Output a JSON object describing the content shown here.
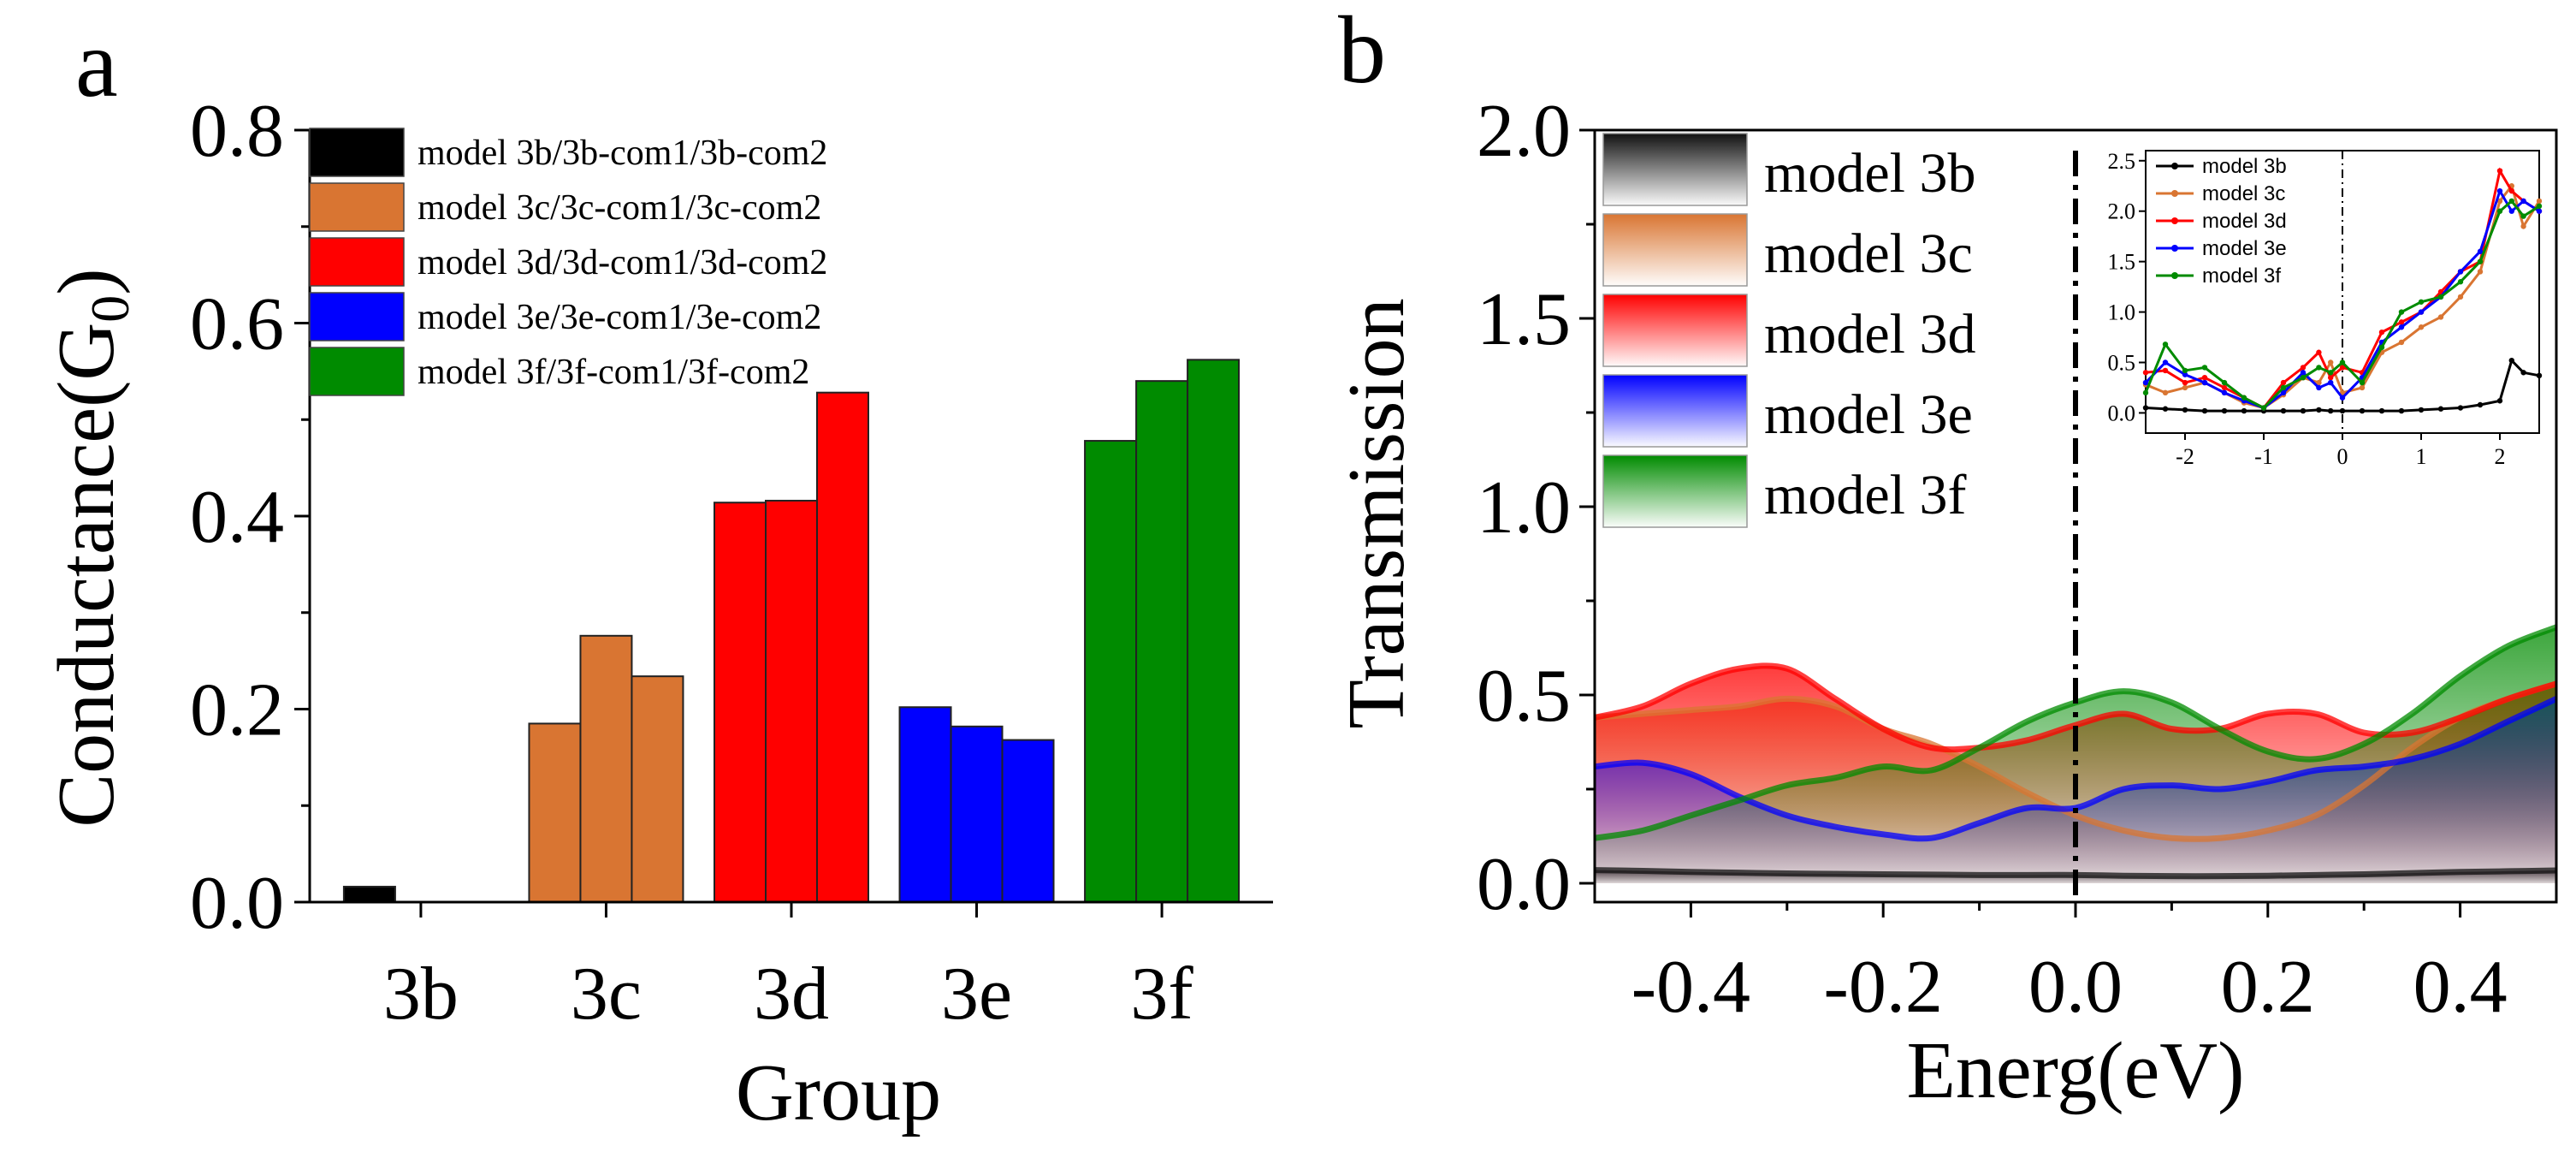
{
  "panel_a": {
    "label": "a",
    "chart_data": {
      "type": "bar",
      "title": "",
      "xlabel": "Group",
      "ylabel": "Conductance(G",
      "ylabel_sub": "0",
      "ylabel_close": ")",
      "ylim": [
        0,
        0.8
      ],
      "yticks": [
        "0.0",
        "0.2",
        "0.4",
        "0.6",
        "0.8"
      ],
      "yticks_values": [
        0,
        0.2,
        0.4,
        0.6,
        0.8
      ],
      "categories": [
        "3b",
        "3c",
        "3d",
        "3e",
        "3f"
      ],
      "series_per_group": [
        "model",
        "com1",
        "com2"
      ],
      "groups": [
        {
          "category": "3b",
          "color": "#000000",
          "legend": "model 3b/3b-com1/3b-com2",
          "values": [
            0.016,
            0.0,
            0.0
          ]
        },
        {
          "category": "3c",
          "color": "#D97532",
          "legend": "model 3c/3c-com1/3c-com2",
          "values": [
            0.185,
            0.276,
            0.234
          ]
        },
        {
          "category": "3d",
          "color": "#FF0000",
          "legend": "model 3d/3d-com1/3d-com2",
          "values": [
            0.414,
            0.416,
            0.528
          ]
        },
        {
          "category": "3e",
          "color": "#0000FF",
          "legend": "model 3e/3e-com1/3e-com2",
          "values": [
            0.202,
            0.182,
            0.168
          ]
        },
        {
          "category": "3f",
          "color": "#008B00",
          "legend": "model 3f/3f-com1/3f-com2",
          "values": [
            0.478,
            0.54,
            0.562
          ]
        }
      ]
    }
  },
  "panel_b": {
    "label": "b",
    "chart_data": {
      "type": "area",
      "title": "",
      "xlabel": "Energ(eV)",
      "ylabel": "Transmission",
      "xlim": [
        -0.5,
        0.5
      ],
      "ylim": [
        -0.05,
        2.0
      ],
      "xticks": [
        "-0.4",
        "-0.2",
        "0.0",
        "0.2",
        "0.4"
      ],
      "xticks_values": [
        -0.4,
        -0.2,
        0.0,
        0.2,
        0.4
      ],
      "yticks": [
        "0.0",
        "0.5",
        "1.0",
        "1.5",
        "2.0"
      ],
      "yticks_values": [
        0,
        0.5,
        1.0,
        1.5,
        2.0
      ],
      "vline_x": 0.0,
      "x": [
        -0.5,
        -0.45,
        -0.4,
        -0.35,
        -0.3,
        -0.25,
        -0.2,
        -0.15,
        -0.1,
        -0.05,
        0.0,
        0.05,
        0.1,
        0.15,
        0.2,
        0.25,
        0.3,
        0.35,
        0.4,
        0.45,
        0.5
      ],
      "series": [
        {
          "name": "model 3b",
          "color": "#111111",
          "values": [
            0.035,
            0.033,
            0.03,
            0.028,
            0.026,
            0.025,
            0.024,
            0.023,
            0.022,
            0.022,
            0.022,
            0.02,
            0.019,
            0.019,
            0.02,
            0.022,
            0.024,
            0.027,
            0.03,
            0.032,
            0.034
          ]
        },
        {
          "name": "model 3c",
          "color": "#D97532",
          "values": [
            0.44,
            0.45,
            0.46,
            0.47,
            0.49,
            0.47,
            0.41,
            0.37,
            0.31,
            0.24,
            0.18,
            0.14,
            0.12,
            0.12,
            0.14,
            0.18,
            0.26,
            0.36,
            0.44,
            0.49,
            0.53
          ]
        },
        {
          "name": "model 3d",
          "color": "#FF0000",
          "values": [
            0.44,
            0.47,
            0.53,
            0.57,
            0.57,
            0.49,
            0.41,
            0.36,
            0.36,
            0.38,
            0.42,
            0.45,
            0.41,
            0.41,
            0.45,
            0.45,
            0.4,
            0.4,
            0.44,
            0.49,
            0.53
          ]
        },
        {
          "name": "model 3e",
          "color": "#0000FF",
          "values": [
            0.31,
            0.32,
            0.29,
            0.23,
            0.18,
            0.15,
            0.13,
            0.12,
            0.16,
            0.2,
            0.2,
            0.25,
            0.26,
            0.25,
            0.27,
            0.3,
            0.31,
            0.33,
            0.37,
            0.43,
            0.49
          ]
        },
        {
          "name": "model 3f",
          "color": "#008B00",
          "values": [
            0.12,
            0.14,
            0.18,
            0.22,
            0.26,
            0.28,
            0.31,
            0.3,
            0.36,
            0.43,
            0.48,
            0.51,
            0.48,
            0.41,
            0.35,
            0.33,
            0.37,
            0.45,
            0.55,
            0.63,
            0.68
          ]
        }
      ]
    },
    "inset_chart_data": {
      "type": "line",
      "xlim": [
        -2.5,
        2.5
      ],
      "ylim": [
        -0.2,
        2.6
      ],
      "xticks": [
        "-2",
        "-1",
        "0",
        "1",
        "2"
      ],
      "xticks_values": [
        -2,
        -1,
        0,
        1,
        2
      ],
      "yticks": [
        "0.0",
        "0.5",
        "1.0",
        "1.5",
        "2.0",
        "2.5"
      ],
      "yticks_values": [
        0,
        0.5,
        1.0,
        1.5,
        2.0,
        2.5
      ],
      "vline_x": 0.0,
      "x": [
        -2.5,
        -2.25,
        -2.0,
        -1.75,
        -1.5,
        -1.25,
        -1.0,
        -0.75,
        -0.5,
        -0.3,
        -0.15,
        0.0,
        0.25,
        0.5,
        0.75,
        1.0,
        1.25,
        1.5,
        1.75,
        2.0,
        2.15,
        2.3,
        2.5
      ],
      "series": [
        {
          "name": "model 3b",
          "color": "#000000",
          "values": [
            0.05,
            0.04,
            0.03,
            0.02,
            0.02,
            0.02,
            0.02,
            0.02,
            0.02,
            0.03,
            0.02,
            0.02,
            0.02,
            0.02,
            0.02,
            0.03,
            0.04,
            0.05,
            0.08,
            0.12,
            0.52,
            0.4,
            0.37
          ]
        },
        {
          "name": "model 3c",
          "color": "#D97532",
          "values": [
            0.28,
            0.2,
            0.25,
            0.3,
            0.2,
            0.1,
            0.05,
            0.18,
            0.35,
            0.3,
            0.5,
            0.2,
            0.25,
            0.6,
            0.7,
            0.85,
            0.95,
            1.15,
            1.4,
            2.1,
            2.25,
            1.85,
            2.1
          ]
        },
        {
          "name": "model 3d",
          "color": "#FF0000",
          "values": [
            0.4,
            0.42,
            0.3,
            0.35,
            0.25,
            0.15,
            0.05,
            0.3,
            0.45,
            0.6,
            0.35,
            0.45,
            0.4,
            0.8,
            0.9,
            1.0,
            1.2,
            1.4,
            1.5,
            2.4,
            2.2,
            2.1,
            2.0
          ]
        },
        {
          "name": "model 3e",
          "color": "#0000FF",
          "values": [
            0.3,
            0.5,
            0.38,
            0.3,
            0.2,
            0.12,
            0.05,
            0.2,
            0.4,
            0.25,
            0.3,
            0.15,
            0.35,
            0.7,
            0.85,
            1.0,
            1.15,
            1.4,
            1.6,
            2.2,
            2.0,
            2.1,
            2.0
          ]
        },
        {
          "name": "model 3f",
          "color": "#008B00",
          "values": [
            0.2,
            0.68,
            0.42,
            0.45,
            0.3,
            0.15,
            0.05,
            0.25,
            0.35,
            0.45,
            0.4,
            0.5,
            0.3,
            0.65,
            1.0,
            1.1,
            1.15,
            1.3,
            1.5,
            2.0,
            2.1,
            1.95,
            2.05
          ]
        }
      ]
    }
  }
}
